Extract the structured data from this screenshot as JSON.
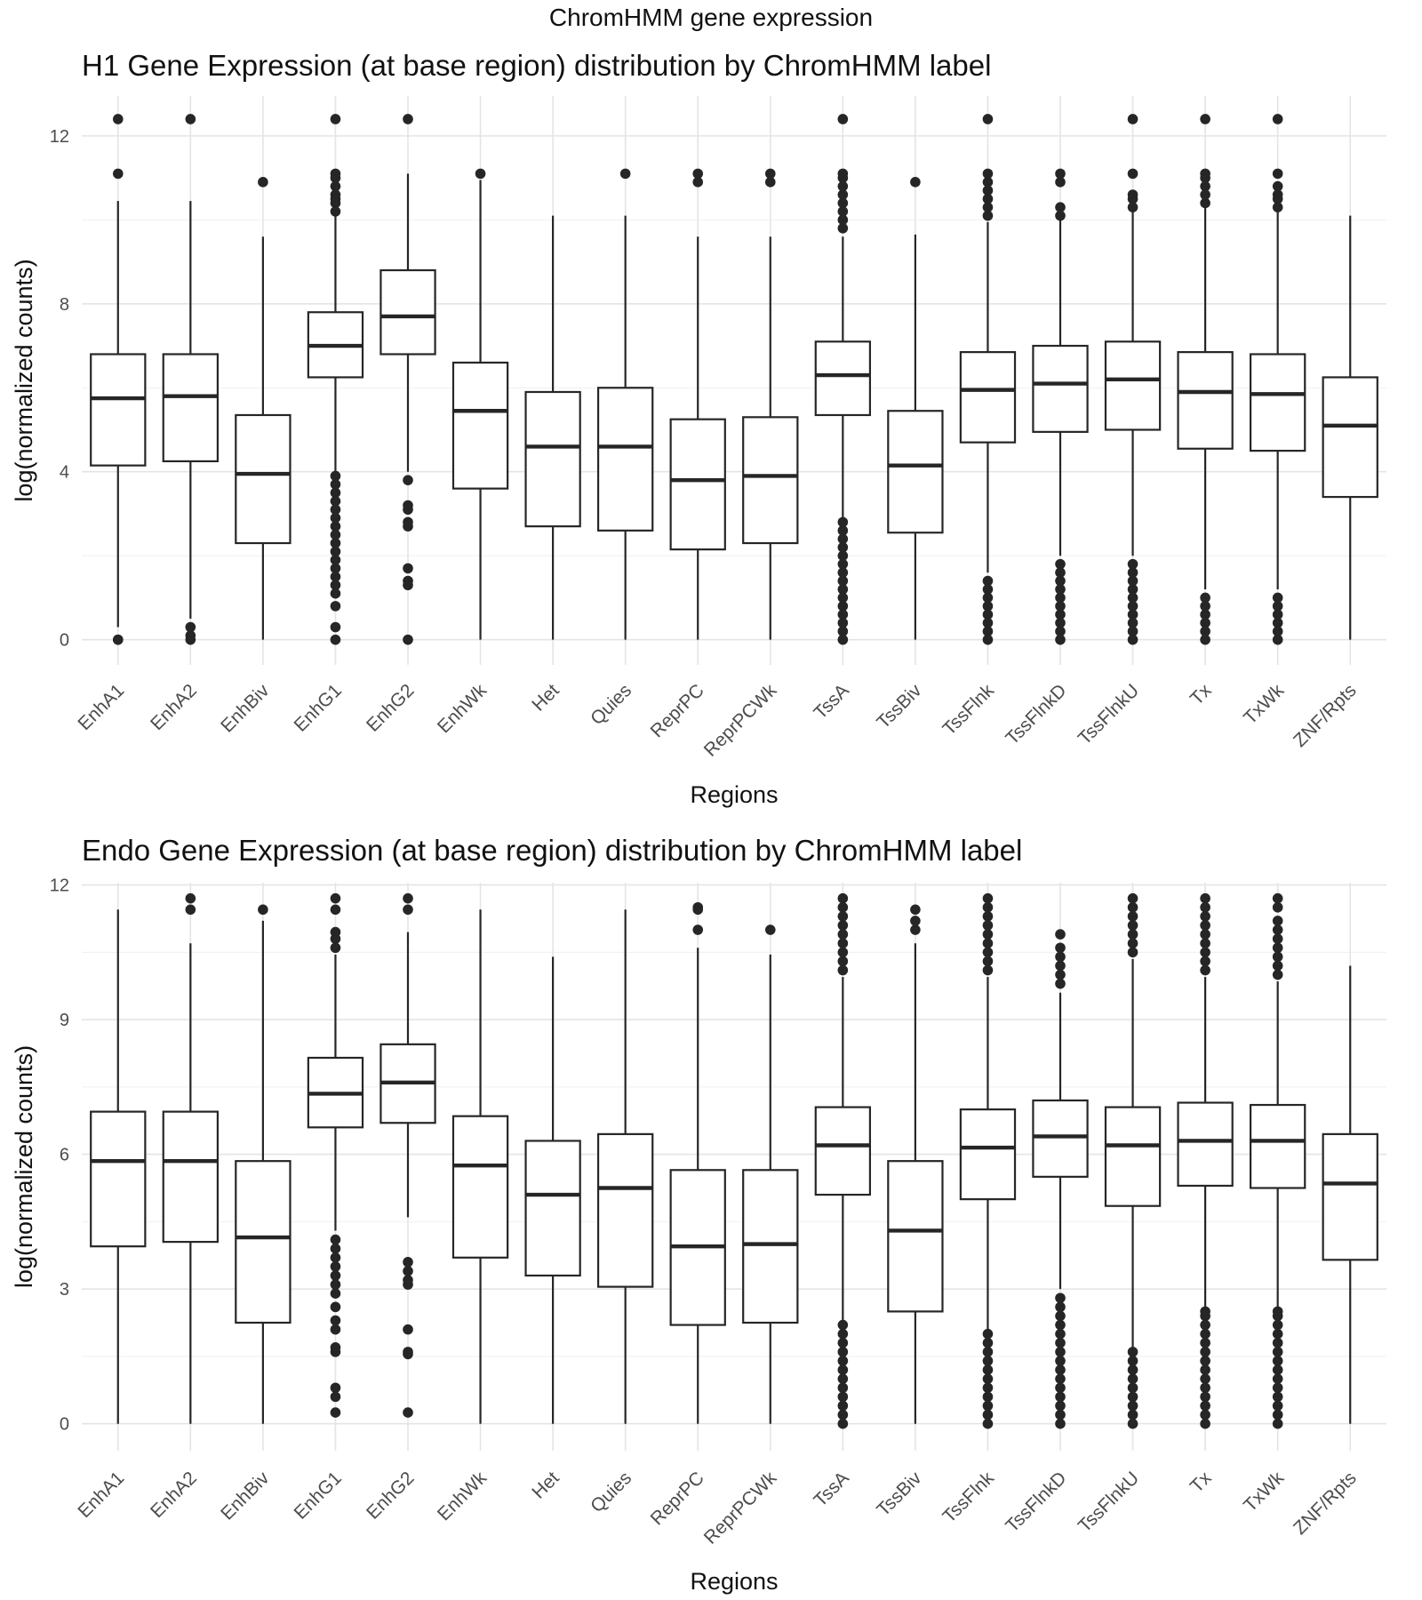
{
  "suptitle": "ChromHMM gene expression",
  "chart_data": [
    {
      "type": "box",
      "title": "H1 Gene Expression (at base region) distribution by ChromHMM label",
      "xlabel": "Regions",
      "ylabel": "log(normalized counts)",
      "ylim": [
        -0.6,
        12.95
      ],
      "yticks": [
        0,
        4,
        8,
        12
      ],
      "minor_yticks": [
        2,
        6,
        10
      ],
      "grid": true,
      "categories": [
        "EnhA1",
        "EnhA2",
        "EnhBiv",
        "EnhG1",
        "EnhG2",
        "EnhWk",
        "Het",
        "Quies",
        "ReprPC",
        "ReprPCWk",
        "TssA",
        "TssBiv",
        "TssFlnk",
        "TssFlnkD",
        "TssFlnkU",
        "Tx",
        "TxWk",
        "ZNF/Rpts"
      ],
      "boxes": [
        {
          "label": "EnhA1",
          "whisker_low": 0.3,
          "q1": 4.15,
          "median": 5.75,
          "q3": 6.8,
          "whisker_high": 10.45,
          "outliers": [
            0,
            0,
            12.4,
            11.1
          ]
        },
        {
          "label": "EnhA2",
          "whisker_low": 0.5,
          "q1": 4.25,
          "median": 5.8,
          "q3": 6.8,
          "whisker_high": 10.45,
          "outliers": [
            0,
            0.1,
            0.3,
            12.4
          ]
        },
        {
          "label": "EnhBiv",
          "whisker_low": 0,
          "q1": 2.3,
          "median": 3.95,
          "q3": 5.35,
          "whisker_high": 9.6,
          "outliers": [
            10.9
          ]
        },
        {
          "label": "EnhG1",
          "whisker_low": 4,
          "q1": 6.25,
          "median": 7.0,
          "q3": 7.8,
          "whisker_high": 10.1,
          "outliers": [
            0,
            0.3,
            0.8,
            1.1,
            1.3,
            1.5,
            1.7,
            1.9,
            2.1,
            2.3,
            2.5,
            2.7,
            2.9,
            3.1,
            3.3,
            3.5,
            3.7,
            3.9,
            10.2,
            10.4,
            10.5,
            10.6,
            10.8,
            11.0,
            11.1,
            12.4
          ]
        },
        {
          "label": "EnhG2",
          "whisker_low": 4,
          "q1": 6.8,
          "median": 7.7,
          "q3": 8.8,
          "whisker_high": 11.1,
          "outliers": [
            0,
            1.3,
            1.4,
            1.7,
            2.7,
            2.8,
            3.1,
            3.2,
            3.8,
            12.4
          ]
        },
        {
          "label": "EnhWk",
          "whisker_low": 0,
          "q1": 3.6,
          "median": 5.45,
          "q3": 6.6,
          "whisker_high": 10.95,
          "outliers": [
            11.1
          ]
        },
        {
          "label": "Het",
          "whisker_low": 0,
          "q1": 2.7,
          "median": 4.6,
          "q3": 5.9,
          "whisker_high": 10.1,
          "outliers": []
        },
        {
          "label": "Quies",
          "whisker_low": 0,
          "q1": 2.6,
          "median": 4.6,
          "q3": 6.0,
          "whisker_high": 10.1,
          "outliers": [
            11.1
          ]
        },
        {
          "label": "ReprPC",
          "whisker_low": 0,
          "q1": 2.15,
          "median": 3.8,
          "q3": 5.25,
          "whisker_high": 9.6,
          "outliers": [
            10.9,
            11.1
          ]
        },
        {
          "label": "ReprPCWk",
          "whisker_low": 0,
          "q1": 2.3,
          "median": 3.9,
          "q3": 5.3,
          "whisker_high": 9.6,
          "outliers": [
            10.9,
            11.1
          ]
        },
        {
          "label": "TssA",
          "whisker_low": 2.9,
          "q1": 5.35,
          "median": 6.3,
          "q3": 7.1,
          "whisker_high": 9.6,
          "outliers": [
            0,
            0.2,
            0.4,
            0.6,
            0.8,
            1.0,
            1.2,
            1.4,
            1.6,
            1.8,
            2.0,
            2.2,
            2.4,
            2.6,
            2.8,
            9.8,
            10.0,
            10.2,
            10.4,
            10.6,
            10.8,
            11.0,
            11.1,
            12.4
          ]
        },
        {
          "label": "TssBiv",
          "whisker_low": 0,
          "q1": 2.55,
          "median": 4.15,
          "q3": 5.45,
          "whisker_high": 9.65,
          "outliers": [
            10.9
          ]
        },
        {
          "label": "TssFlnk",
          "whisker_low": 1.6,
          "q1": 4.7,
          "median": 5.95,
          "q3": 6.85,
          "whisker_high": 9.95,
          "outliers": [
            0,
            0.2,
            0.4,
            0.6,
            0.8,
            1.0,
            1.2,
            1.4,
            10.1,
            10.3,
            10.5,
            10.7,
            10.9,
            11.1,
            12.4
          ]
        },
        {
          "label": "TssFlnkD",
          "whisker_low": 2,
          "q1": 4.95,
          "median": 6.1,
          "q3": 7.0,
          "whisker_high": 10.0,
          "outliers": [
            0,
            0.2,
            0.4,
            0.6,
            0.8,
            1.0,
            1.2,
            1.4,
            1.6,
            1.8,
            10.1,
            10.3,
            10.9,
            11.1
          ]
        },
        {
          "label": "TssFlnkU",
          "whisker_low": 2,
          "q1": 5.0,
          "median": 6.2,
          "q3": 7.1,
          "whisker_high": 10.2,
          "outliers": [
            0,
            0.2,
            0.4,
            0.6,
            0.8,
            1.0,
            1.2,
            1.4,
            1.6,
            1.8,
            10.3,
            10.5,
            10.6,
            11.1,
            12.4
          ]
        },
        {
          "label": "Tx",
          "whisker_low": 1.2,
          "q1": 4.55,
          "median": 5.9,
          "q3": 6.85,
          "whisker_high": 10.3,
          "outliers": [
            0,
            0.2,
            0.4,
            0.6,
            0.8,
            1.0,
            10.4,
            10.6,
            10.8,
            11.0,
            11.1,
            12.4
          ]
        },
        {
          "label": "TxWk",
          "whisker_low": 1.2,
          "q1": 4.5,
          "median": 5.85,
          "q3": 6.8,
          "whisker_high": 10.2,
          "outliers": [
            0,
            0.2,
            0.4,
            0.6,
            0.8,
            1.0,
            10.3,
            10.5,
            10.6,
            10.8,
            11.1,
            12.4
          ]
        },
        {
          "label": "ZNF/Rpts",
          "whisker_low": 0,
          "q1": 3.4,
          "median": 5.1,
          "q3": 6.25,
          "whisker_high": 10.1,
          "outliers": []
        }
      ]
    },
    {
      "type": "box",
      "title": "Endo Gene Expression (at base region) distribution by ChromHMM label",
      "xlabel": "Regions",
      "ylabel": "log(normalized counts)",
      "ylim": [
        -0.6,
        12.05
      ],
      "yticks": [
        0,
        3,
        6,
        9,
        12
      ],
      "minor_yticks": [
        1.5,
        4.5,
        7.5,
        10.5
      ],
      "grid": true,
      "categories": [
        "EnhA1",
        "EnhA2",
        "EnhBiv",
        "EnhG1",
        "EnhG2",
        "EnhWk",
        "Het",
        "Quies",
        "ReprPC",
        "ReprPCWk",
        "TssA",
        "TssBiv",
        "TssFlnk",
        "TssFlnkD",
        "TssFlnkU",
        "Tx",
        "TxWk",
        "ZNF/Rpts"
      ],
      "boxes": [
        {
          "label": "EnhA1",
          "whisker_low": 0,
          "q1": 3.95,
          "median": 5.85,
          "q3": 6.95,
          "whisker_high": 11.45,
          "outliers": []
        },
        {
          "label": "EnhA2",
          "whisker_low": 0,
          "q1": 4.05,
          "median": 5.85,
          "q3": 6.95,
          "whisker_high": 10.7,
          "outliers": [
            11.45,
            11.7
          ]
        },
        {
          "label": "EnhBiv",
          "whisker_low": 0,
          "q1": 2.25,
          "median": 4.15,
          "q3": 5.85,
          "whisker_high": 11.2,
          "outliers": [
            11.45
          ]
        },
        {
          "label": "EnhG1",
          "whisker_low": 4.3,
          "q1": 6.6,
          "median": 7.35,
          "q3": 8.15,
          "whisker_high": 10.45,
          "outliers": [
            0.25,
            0.6,
            0.8,
            1.6,
            1.7,
            2.1,
            2.3,
            2.6,
            2.9,
            3.1,
            3.3,
            3.5,
            3.7,
            3.9,
            4.1,
            10.6,
            10.8,
            10.95,
            11.45,
            11.7
          ]
        },
        {
          "label": "EnhG2",
          "whisker_low": 4.6,
          "q1": 6.7,
          "median": 7.6,
          "q3": 8.45,
          "whisker_high": 10.95,
          "outliers": [
            0.25,
            1.55,
            1.6,
            2.1,
            3.1,
            3.2,
            3.4,
            3.6,
            11.45,
            11.7
          ]
        },
        {
          "label": "EnhWk",
          "whisker_low": 0,
          "q1": 3.7,
          "median": 5.75,
          "q3": 6.85,
          "whisker_high": 11.45,
          "outliers": []
        },
        {
          "label": "Het",
          "whisker_low": 0,
          "q1": 3.3,
          "median": 5.1,
          "q3": 6.3,
          "whisker_high": 10.4,
          "outliers": []
        },
        {
          "label": "Quies",
          "whisker_low": 0,
          "q1": 3.05,
          "median": 5.25,
          "q3": 6.45,
          "whisker_high": 11.45,
          "outliers": []
        },
        {
          "label": "ReprPC",
          "whisker_low": 0,
          "q1": 2.2,
          "median": 3.95,
          "q3": 5.65,
          "whisker_high": 10.6,
          "outliers": [
            11.0,
            11.45,
            11.5
          ]
        },
        {
          "label": "ReprPCWk",
          "whisker_low": 0,
          "q1": 2.25,
          "median": 4.0,
          "q3": 5.65,
          "whisker_high": 10.45,
          "outliers": [
            11.0
          ]
        },
        {
          "label": "TssA",
          "whisker_low": 2.3,
          "q1": 5.1,
          "median": 6.2,
          "q3": 7.05,
          "whisker_high": 9.95,
          "outliers": [
            0,
            0.2,
            0.4,
            0.6,
            0.8,
            1.0,
            1.2,
            1.4,
            1.6,
            1.8,
            2.0,
            2.2,
            10.1,
            10.3,
            10.5,
            10.7,
            10.9,
            11.1,
            11.3,
            11.5,
            11.7
          ]
        },
        {
          "label": "TssBiv",
          "whisker_low": 0,
          "q1": 2.5,
          "median": 4.3,
          "q3": 5.85,
          "whisker_high": 10.7,
          "outliers": [
            11.0,
            11.2,
            11.45
          ]
        },
        {
          "label": "TssFlnk",
          "whisker_low": 2.1,
          "q1": 5.0,
          "median": 6.15,
          "q3": 7.0,
          "whisker_high": 9.95,
          "outliers": [
            0,
            0.2,
            0.4,
            0.6,
            0.8,
            1.0,
            1.2,
            1.4,
            1.6,
            1.8,
            2.0,
            10.1,
            10.3,
            10.5,
            10.7,
            10.9,
            11.1,
            11.3,
            11.5,
            11.7
          ]
        },
        {
          "label": "TssFlnkD",
          "whisker_low": 3.0,
          "q1": 5.5,
          "median": 6.4,
          "q3": 7.2,
          "whisker_high": 9.6,
          "outliers": [
            0,
            0.2,
            0.4,
            0.6,
            0.8,
            1.0,
            1.2,
            1.4,
            1.6,
            1.8,
            2.0,
            2.2,
            2.4,
            2.6,
            2.8,
            9.8,
            10.0,
            10.2,
            10.4,
            10.6,
            10.9
          ]
        },
        {
          "label": "TssFlnkU",
          "whisker_low": 1.7,
          "q1": 4.85,
          "median": 6.2,
          "q3": 7.05,
          "whisker_high": 10.35,
          "outliers": [
            0,
            0.2,
            0.4,
            0.6,
            0.8,
            1.0,
            1.2,
            1.4,
            1.6,
            10.5,
            10.7,
            10.9,
            11.1,
            11.3,
            11.5,
            11.7
          ]
        },
        {
          "label": "Tx",
          "whisker_low": 2.6,
          "q1": 5.3,
          "median": 6.3,
          "q3": 7.15,
          "whisker_high": 9.95,
          "outliers": [
            0,
            0.2,
            0.4,
            0.6,
            0.8,
            1.0,
            1.2,
            1.4,
            1.6,
            1.8,
            2.0,
            2.2,
            2.4,
            2.5,
            10.1,
            10.3,
            10.5,
            10.7,
            10.9,
            11.1,
            11.3,
            11.5,
            11.7
          ]
        },
        {
          "label": "TxWk",
          "whisker_low": 2.6,
          "q1": 5.25,
          "median": 6.3,
          "q3": 7.1,
          "whisker_high": 9.85,
          "outliers": [
            0,
            0.2,
            0.4,
            0.6,
            0.8,
            1.0,
            1.2,
            1.4,
            1.6,
            1.8,
            2.0,
            2.2,
            2.4,
            2.5,
            10.0,
            10.2,
            10.4,
            10.6,
            10.8,
            11.0,
            11.2,
            11.5,
            11.7
          ]
        },
        {
          "label": "ZNF/Rpts",
          "whisker_low": 0,
          "q1": 3.65,
          "median": 5.35,
          "q3": 6.45,
          "whisker_high": 10.2,
          "outliers": []
        }
      ]
    }
  ]
}
